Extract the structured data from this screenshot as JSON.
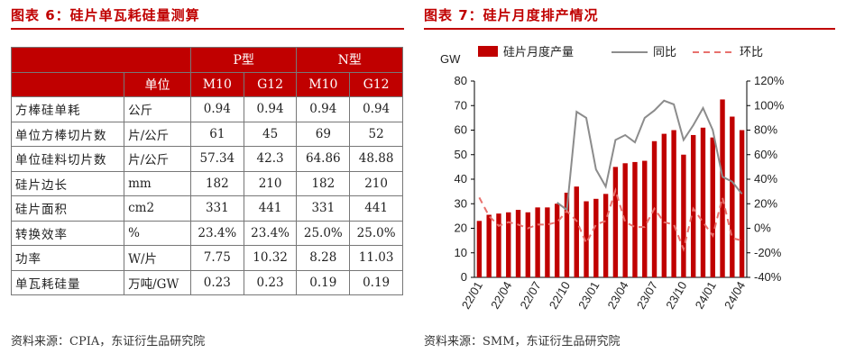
{
  "left_panel": {
    "title": "图表 6：硅片单瓦耗硅量测算",
    "source": "资料来源：CPIA，东证衍生品研究院",
    "table": {
      "group_headers": [
        "P型",
        "N型"
      ],
      "unit_header": "单位",
      "columns": [
        "M10",
        "G12",
        "M10",
        "G12"
      ],
      "rows": [
        {
          "label": "方棒硅单耗",
          "unit": "公斤",
          "values": [
            "0.94",
            "0.94",
            "0.94",
            "0.94"
          ]
        },
        {
          "label": "单位方棒切片数",
          "unit": "片/公斤",
          "values": [
            "61",
            "45",
            "69",
            "52"
          ]
        },
        {
          "label": "单位硅料切片数",
          "unit": "片/公斤",
          "values": [
            "57.34",
            "42.3",
            "64.86",
            "48.88"
          ]
        },
        {
          "label": "硅片边长",
          "unit": "mm",
          "values": [
            "182",
            "210",
            "182",
            "210"
          ]
        },
        {
          "label": "硅片面积",
          "unit": "cm2",
          "values": [
            "331",
            "441",
            "331",
            "441"
          ]
        },
        {
          "label": "转换效率",
          "unit": "%",
          "values": [
            "23.4%",
            "23.4%",
            "25.0%",
            "25.0%"
          ]
        },
        {
          "label": "功率",
          "unit": "W/片",
          "values": [
            "7.75",
            "10.32",
            "8.28",
            "11.03"
          ]
        },
        {
          "label": "单瓦耗硅量",
          "unit": "万吨/GW",
          "values": [
            "0.23",
            "0.23",
            "0.19",
            "0.19"
          ]
        }
      ]
    }
  },
  "right_panel": {
    "title": "图表 7：硅片月度排产情况",
    "source": "资料来源：SMM，东证衍生品研究院"
  },
  "chart_data": {
    "type": "bar",
    "left_axis_unit": "GW",
    "ylim": [
      0,
      80
    ],
    "y2lim": [
      -40,
      120
    ],
    "yticks": [
      "0",
      "10",
      "20",
      "30",
      "40",
      "50",
      "60",
      "70",
      "80"
    ],
    "y2ticks": [
      "-40%",
      "-20%",
      "0%",
      "20%",
      "40%",
      "60%",
      "80%",
      "100%",
      "120%"
    ],
    "xticks": [
      "22/01",
      "22/04",
      "22/07",
      "22/10",
      "23/01",
      "23/04",
      "23/07",
      "23/10",
      "24/01",
      "24/04"
    ],
    "grid": false,
    "legend_position": "top",
    "colors": {
      "bar": "#c00000",
      "yoy": "#8c8c8c",
      "mom": "#e8716d"
    },
    "series": [
      {
        "name": "硅片月度产量",
        "axis": "left",
        "style": "bar",
        "values": [
          23,
          25.5,
          26,
          26.5,
          27.5,
          26.5,
          28.5,
          28.5,
          30,
          34.5,
          37,
          31,
          32,
          34,
          45,
          46.5,
          47,
          47.5,
          55.5,
          58.5,
          60,
          50,
          58,
          61,
          57,
          72.5,
          65.5,
          60
        ]
      },
      {
        "name": "同比",
        "axis": "right",
        "style": "line",
        "values": [
          null,
          null,
          null,
          null,
          null,
          null,
          null,
          null,
          21,
          15,
          95,
          90,
          48,
          34,
          72,
          76,
          70,
          90,
          96,
          104,
          101,
          72,
          84,
          98,
          80,
          42,
          38,
          28
        ]
      },
      {
        "name": "环比",
        "axis": "right",
        "style": "dashed",
        "values": [
          25,
          10,
          2,
          5,
          3,
          0,
          3,
          3,
          5,
          14,
          6,
          -12,
          3,
          6,
          31,
          5,
          1,
          1,
          16,
          5,
          3,
          -17,
          16,
          5,
          -6,
          25,
          -8,
          -10
        ]
      }
    ]
  }
}
